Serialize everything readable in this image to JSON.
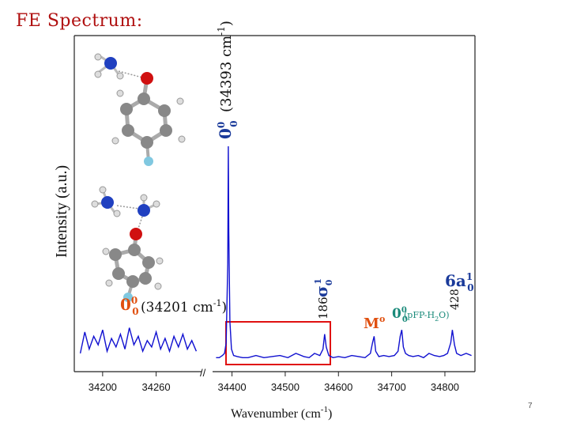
{
  "slide": {
    "title": "FE Spectrum:",
    "page_number": "7"
  },
  "colors": {
    "title": "#b01010",
    "trace": "#1010d0",
    "highlight_box": "#e01010",
    "annotation_blue": "#1a3a9a",
    "annotation_orange": "#e05010",
    "annotation_teal": "#1a8a7a"
  },
  "chart_data": {
    "type": "line",
    "xlabel_main": "Wavenumber (cm",
    "xlabel_sup": "-1",
    "xlabel_close": ")",
    "ylabel": "Intensity (a.u.)",
    "axis_break": "//",
    "x_ticks_left": [
      "34200",
      "34260"
    ],
    "x_ticks_right": [
      "34400",
      "34500",
      "34600",
      "34700",
      "34800"
    ],
    "xlim_left": [
      34170,
      34310
    ],
    "xlim_right": [
      34365,
      34855
    ],
    "series": [
      {
        "x": [
          34175,
          34180,
          34185,
          34190,
          34195,
          34200,
          34205,
          34210,
          34215,
          34220,
          34225,
          34230,
          34235,
          34240,
          34245,
          34250,
          34255,
          34260,
          34265,
          34270,
          34275,
          34280,
          34285,
          34290,
          34295,
          34300,
          34305
        ],
        "y": [
          0.03,
          0.13,
          0.05,
          0.11,
          0.07,
          0.14,
          0.04,
          0.1,
          0.06,
          0.12,
          0.05,
          0.15,
          0.07,
          0.11,
          0.04,
          0.09,
          0.06,
          0.13,
          0.05,
          0.1,
          0.04,
          0.11,
          0.06,
          0.12,
          0.05,
          0.09,
          0.04
        ]
      },
      {
        "x": [
          34370,
          34376,
          34382,
          34386,
          34389,
          34392,
          34393,
          34394,
          34396,
          34399,
          34403,
          34410,
          34420,
          34430,
          34445,
          34460,
          34475,
          34490,
          34505,
          34520,
          34535,
          34545,
          34555,
          34565,
          34571,
          34574,
          34577,
          34582,
          34590,
          34600,
          34612,
          34625,
          34638,
          34650,
          34660,
          34664,
          34667,
          34670,
          34676,
          34685,
          34695,
          34705,
          34712,
          34716,
          34719,
          34722,
          34726,
          34732,
          34740,
          34750,
          34760,
          34770,
          34780,
          34790,
          34798,
          34805,
          34811,
          34814,
          34818,
          34822,
          34830,
          34840,
          34850
        ],
        "y": [
          0.01,
          0.01,
          0.02,
          0.03,
          0.08,
          0.45,
          1.0,
          0.6,
          0.18,
          0.05,
          0.02,
          0.015,
          0.01,
          0.01,
          0.02,
          0.01,
          0.015,
          0.02,
          0.01,
          0.03,
          0.015,
          0.01,
          0.03,
          0.02,
          0.05,
          0.12,
          0.06,
          0.02,
          0.01,
          0.015,
          0.01,
          0.02,
          0.015,
          0.01,
          0.03,
          0.08,
          0.11,
          0.04,
          0.015,
          0.02,
          0.015,
          0.02,
          0.04,
          0.11,
          0.14,
          0.06,
          0.03,
          0.02,
          0.015,
          0.02,
          0.01,
          0.03,
          0.02,
          0.015,
          0.02,
          0.03,
          0.08,
          0.14,
          0.07,
          0.03,
          0.02,
          0.03,
          0.02
        ]
      }
    ],
    "annotations": {
      "origin_main": "0",
      "origin_sub": "0",
      "origin_sup": "0",
      "origin_value": "(34393 cm",
      "origin_value_sup": "-1",
      "origin_value_close": ")",
      "monomer_main": "0",
      "monomer_sub": "0",
      "monomer_sup": "0",
      "monomer_value": "(34201 cm",
      "monomer_value_sup": "-1",
      "monomer_value_close": ")",
      "sigma_num": "186",
      "sigma_main": "σ",
      "sigma_sub": "0",
      "sigma_sup": "1",
      "vib_num": "428",
      "vib_main": "6a",
      "vib_sub": "0",
      "vib_sup": "1",
      "m_main": "M",
      "m_sup": "o",
      "pff_main": "0",
      "pff_sub": "0",
      "pff_sup": "0",
      "pff_label": "(pFP-H",
      "pff_label_sub": "2",
      "pff_label_close": "O)"
    }
  }
}
